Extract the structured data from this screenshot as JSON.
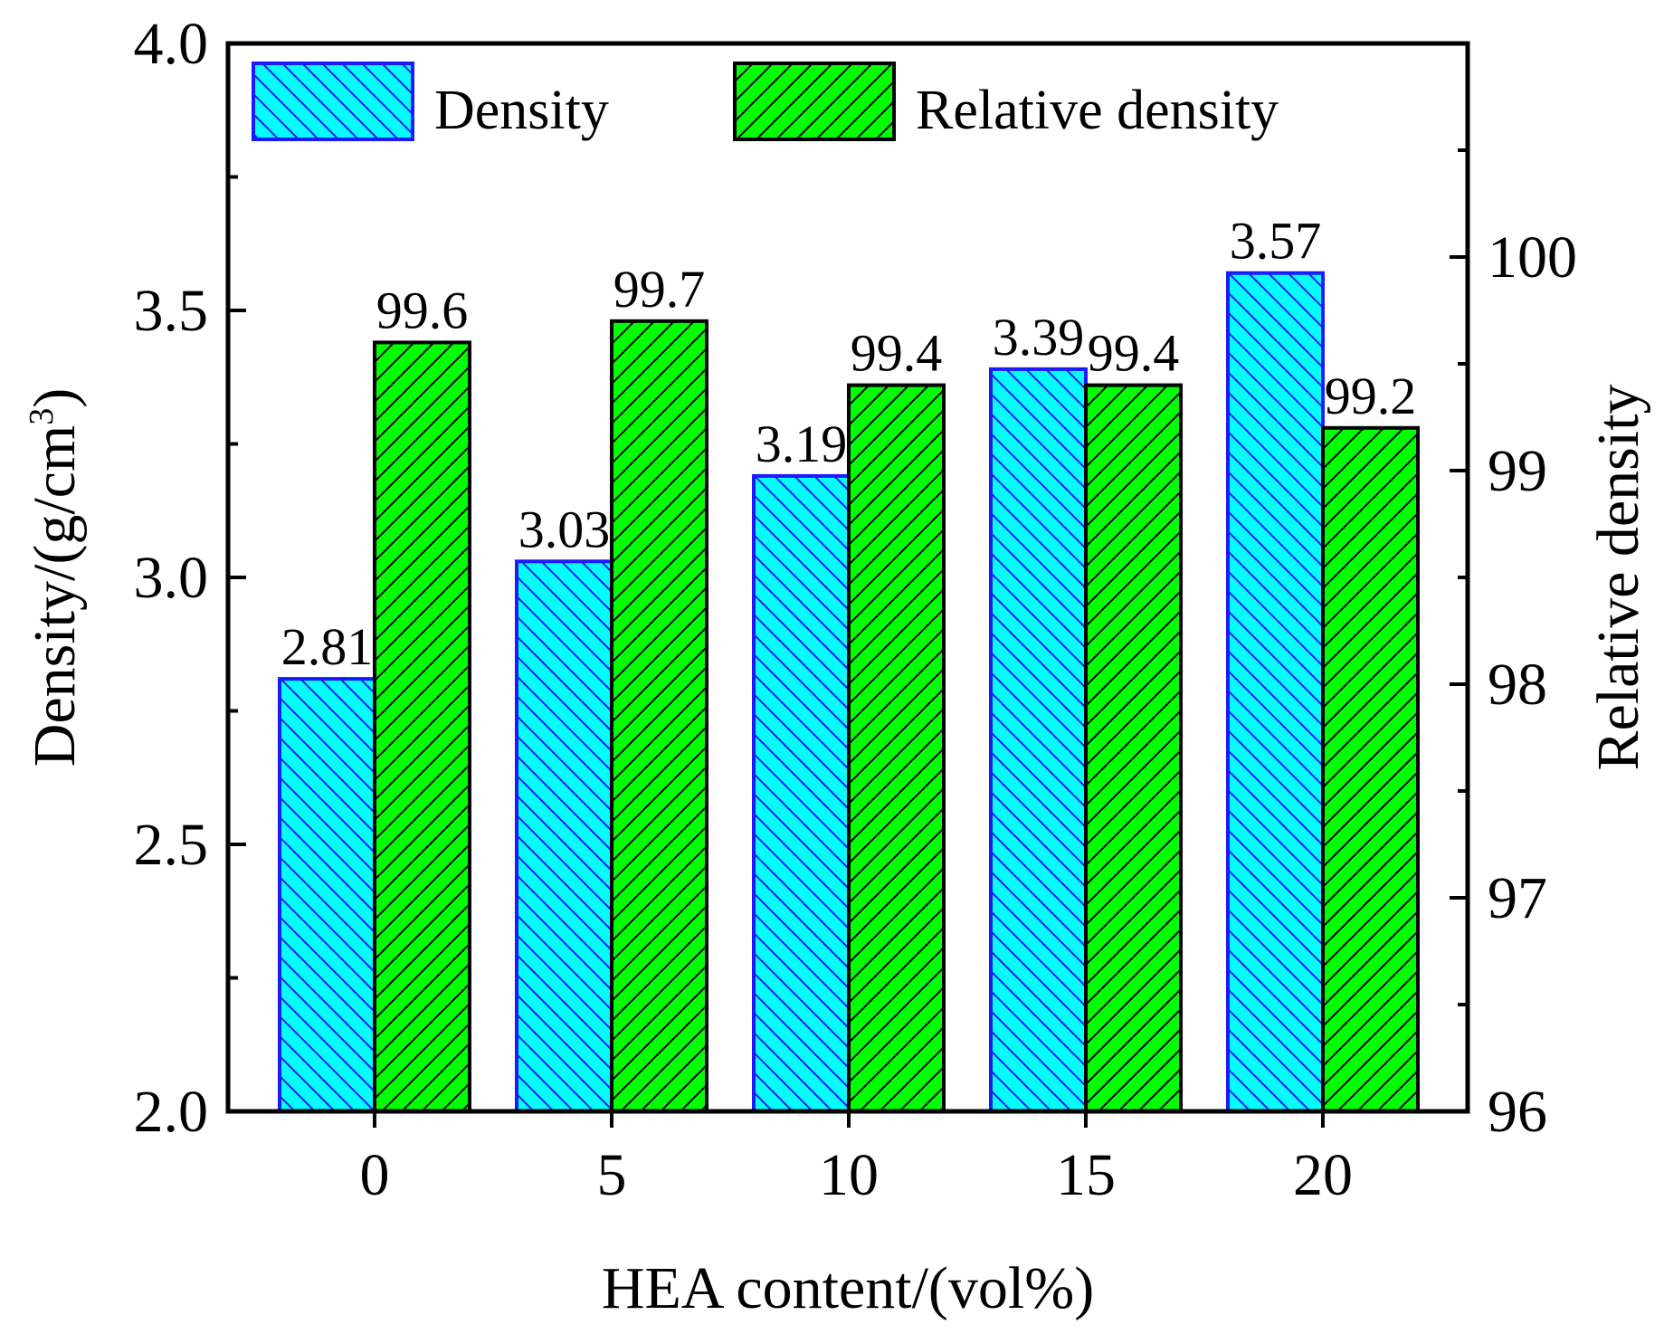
{
  "chart_data": {
    "type": "bar",
    "categories": [
      "0",
      "5",
      "10",
      "15",
      "20"
    ],
    "xlabel": "HEA content/(vol%)",
    "ylabel": {
      "main": "Density/(g/cm",
      "sup": "3",
      "close": ")"
    },
    "y2label": "Relative density",
    "ylim": [
      2.0,
      4.0
    ],
    "y2lim": [
      96,
      101
    ],
    "yticks": [
      2.0,
      2.5,
      3.0,
      3.5,
      4.0
    ],
    "yticks_minor": [
      2.25,
      2.75,
      3.25,
      3.75
    ],
    "ytick_labels": [
      "2.0",
      "2.5",
      "3.0",
      "3.5",
      "4.0"
    ],
    "y2ticks": [
      96,
      97,
      98,
      99,
      100
    ],
    "y2ticks_minor": [
      96.5,
      97.5,
      98.5,
      99.5,
      100.5
    ],
    "y2tick_labels": [
      "96",
      "97",
      "98",
      "99",
      "100"
    ],
    "series": [
      {
        "name": "Density",
        "axis": "left",
        "values": [
          2.81,
          3.03,
          3.19,
          3.39,
          3.57
        ],
        "labels": [
          "2.81",
          "3.03",
          "3.19",
          "3.39",
          "3.57"
        ],
        "fill": "#00ffff",
        "edge": "#1a1aff",
        "hatch": "backslash"
      },
      {
        "name": "Relative density",
        "axis": "right",
        "values": [
          99.6,
          99.7,
          99.4,
          99.4,
          99.2
        ],
        "labels": [
          "99.6",
          "99.7",
          "99.4",
          "99.4",
          "99.2"
        ],
        "fill": "#00ff00",
        "edge": "#000000",
        "hatch": "slash"
      }
    ],
    "legend_position": "top",
    "grid": false
  }
}
